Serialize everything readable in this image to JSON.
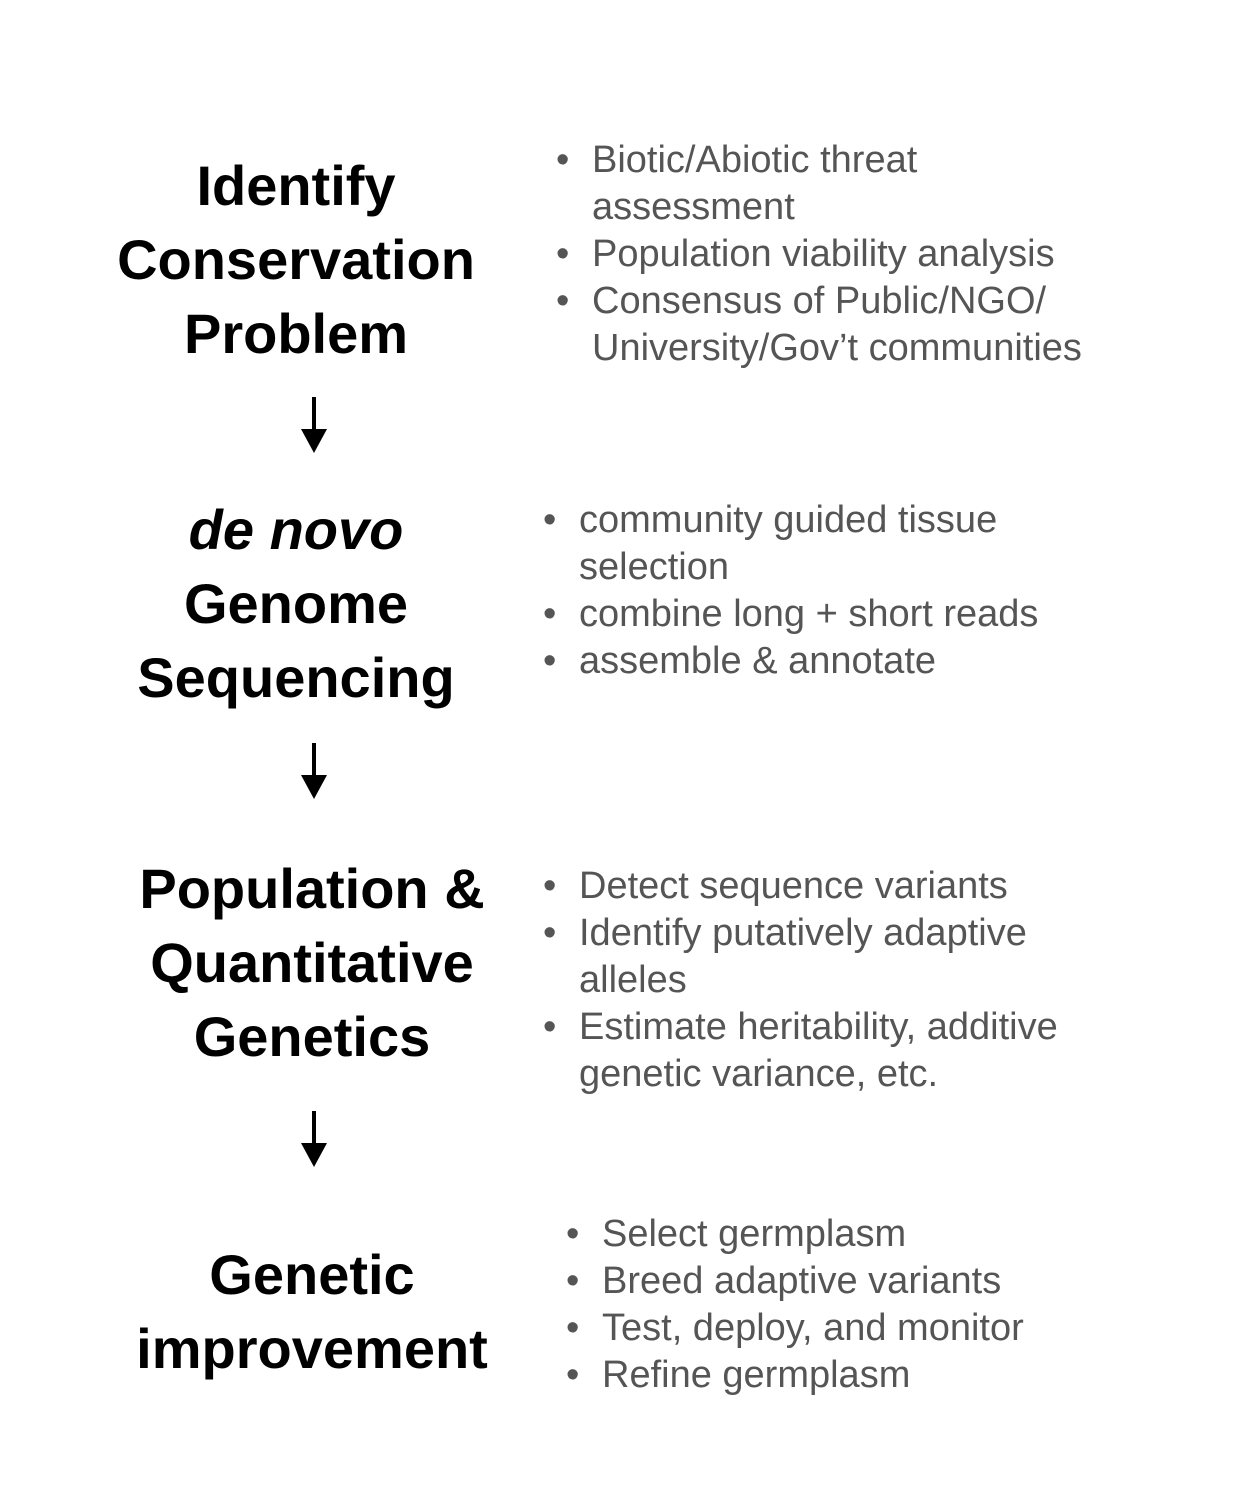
{
  "stages": [
    {
      "title_lines": [
        "Identify",
        "Conservation",
        "Problem"
      ],
      "bullets": [
        [
          "Biotic/Abiotic threat",
          "assessment"
        ],
        [
          "Population viability analysis"
        ],
        [
          "Consensus of Public/NGO/",
          "University/Gov’t communities"
        ]
      ]
    },
    {
      "title_lines": [
        "de novo",
        "Genome",
        "Sequencing"
      ],
      "bullets": [
        [
          "community guided tissue",
          "selection"
        ],
        [
          "combine long + short reads"
        ],
        [
          "assemble & annotate"
        ]
      ]
    },
    {
      "title_lines": [
        "Population &",
        "Quantitative",
        "Genetics"
      ],
      "bullets": [
        [
          "Detect sequence variants"
        ],
        [
          "Identify putatively adaptive",
          "alleles"
        ],
        [
          "Estimate heritability, additive",
          "genetic variance, etc."
        ]
      ]
    },
    {
      "title_lines": [
        "Genetic",
        "improvement"
      ],
      "bullets": [
        [
          "Select germplasm"
        ],
        [
          "Breed adaptive variants"
        ],
        [
          "Test, deploy, and monitor"
        ],
        [
          "Refine germplasm"
        ]
      ]
    }
  ],
  "colors": {
    "title": "#000000",
    "bullets": "#555555",
    "arrow": "#000000"
  },
  "icons": [
    "down-arrow-icon"
  ]
}
